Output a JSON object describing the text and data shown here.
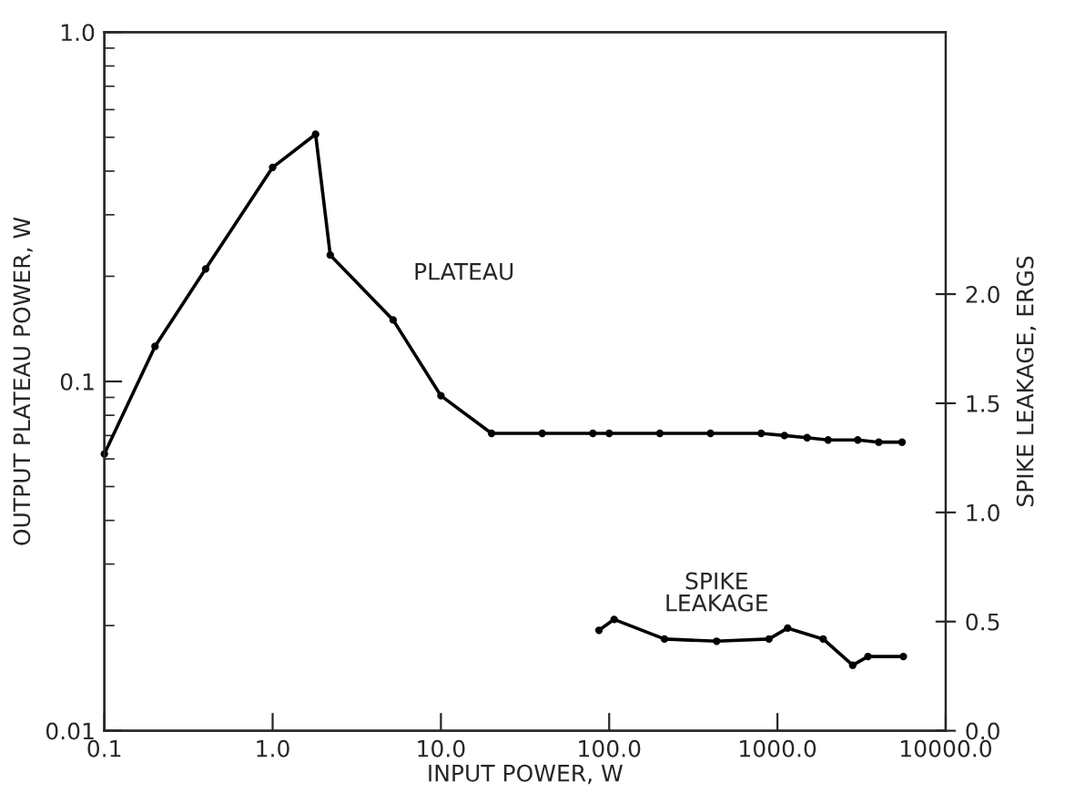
{
  "chart_data": {
    "type": "line",
    "xlabel": "INPUT POWER, W",
    "ylabel": "OUTPUT PLATEAU POWER, W",
    "y2label": "SPIKE LEAKAGE, ERGS",
    "log": "xy",
    "marker": "circle",
    "line_style": "solid",
    "grid": false,
    "legend": false,
    "xlim": [
      0.1,
      10000
    ],
    "xticks": [
      0.1,
      {
        "value": 1,
        "label": "1.0"
      },
      {
        "value": 10,
        "label": "10.0"
      },
      {
        "value": 100,
        "label": "100.0"
      },
      {
        "value": 1000,
        "label": "1000.0"
      },
      {
        "value": 10000,
        "label": "10000.0"
      }
    ],
    "ylim": [
      0.01,
      1.0
    ],
    "yticks": [
      0.01,
      0.1,
      {
        "value": 1,
        "label": "1.0"
      }
    ],
    "y2lim": [
      0,
      3.2
    ],
    "y2ticks": [
      {
        "value": 0,
        "label": "0.0"
      },
      0.5,
      {
        "value": 1,
        "label": "1.0"
      },
      1.5,
      {
        "value": 2,
        "label": "2.0"
      }
    ],
    "series": [
      {
        "name": "PLATEAU",
        "color": "#000000",
        "x": [
          0.1,
          0.2,
          0.4,
          1.0,
          1.8,
          2.2,
          5.2,
          10,
          20,
          40,
          80,
          100,
          200,
          400,
          800,
          1100,
          1500,
          2000,
          3000,
          4000,
          5500
        ],
        "values": [
          0.062,
          0.126,
          0.21,
          0.41,
          0.51,
          0.23,
          0.15,
          0.091,
          0.071,
          0.071,
          0.071,
          0.071,
          0.071,
          0.071,
          0.071,
          0.07,
          0.069,
          0.068,
          0.068,
          0.067,
          0.067
        ]
      },
      {
        "name": "SPIKE LEAKAGE",
        "color": "#000000",
        "axis": "y2",
        "x": [
          87,
          107,
          213,
          435,
          890,
          1150,
          1870,
          2800,
          3450,
          5600
        ],
        "values": [
          0.46,
          0.51,
          0.42,
          0.41,
          0.42,
          0.47,
          0.42,
          0.3,
          0.34,
          0.34
        ]
      }
    ]
  }
}
